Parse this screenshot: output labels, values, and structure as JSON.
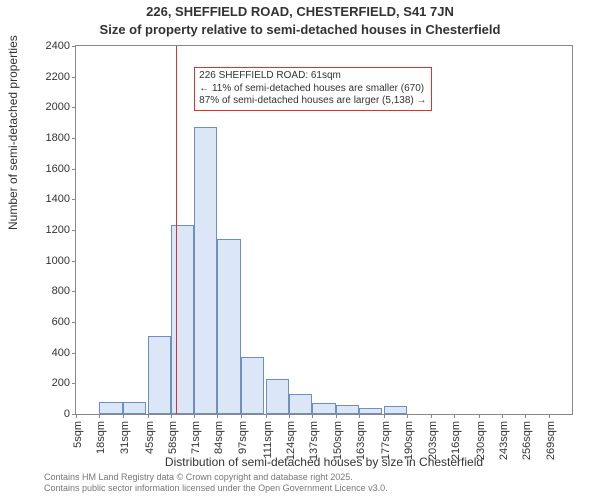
{
  "title_line1": "226, SHEFFIELD ROAD, CHESTERFIELD, S41 7JN",
  "title_line2": "Size of property relative to semi-detached houses in Chesterfield",
  "y_axis_label": "Number of semi-detached properties",
  "x_axis_label": "Distribution of semi-detached houses by size in Chesterfield",
  "footer_line1": "Contains HM Land Registry data © Crown copyright and database right 2025.",
  "footer_line2": "Contains public sector information licensed under the Open Government Licence v3.0.",
  "chart": {
    "type": "histogram",
    "background_color": "#ffffff",
    "axis_color": "#888888",
    "tick_fontsize": 11,
    "label_fontsize": 12,
    "title_fontsize": 13,
    "ylim": [
      0,
      2400
    ],
    "ytick_step": 200,
    "yticks": [
      0,
      200,
      400,
      600,
      800,
      1000,
      1200,
      1400,
      1600,
      1800,
      2000,
      2200,
      2400
    ],
    "bin_width_sqm": 13,
    "bar_fill": "#dbe7f6",
    "bar_stroke": "#6d8fc3",
    "bar_stroke_width": 1,
    "bins": [
      {
        "start": 5,
        "label": "5sqm",
        "count": 0
      },
      {
        "start": 18,
        "label": "18sqm",
        "count": 80
      },
      {
        "start": 31,
        "label": "31sqm",
        "count": 80
      },
      {
        "start": 45,
        "label": "45sqm",
        "count": 510
      },
      {
        "start": 58,
        "label": "58sqm",
        "count": 1230
      },
      {
        "start": 71,
        "label": "71sqm",
        "count": 1870
      },
      {
        "start": 84,
        "label": "84sqm",
        "count": 1140
      },
      {
        "start": 97,
        "label": "97sqm",
        "count": 370
      },
      {
        "start": 111,
        "label": "111sqm",
        "count": 230
      },
      {
        "start": 124,
        "label": "124sqm",
        "count": 130
      },
      {
        "start": 137,
        "label": "137sqm",
        "count": 70
      },
      {
        "start": 150,
        "label": "150sqm",
        "count": 60
      },
      {
        "start": 163,
        "label": "163sqm",
        "count": 40
      },
      {
        "start": 177,
        "label": "177sqm",
        "count": 50
      },
      {
        "start": 190,
        "label": "190sqm",
        "count": 0
      },
      {
        "start": 203,
        "label": "203sqm",
        "count": 0
      },
      {
        "start": 216,
        "label": "216sqm",
        "count": 0
      },
      {
        "start": 230,
        "label": "230sqm",
        "count": 0
      },
      {
        "start": 243,
        "label": "243sqm",
        "count": 0
      },
      {
        "start": 256,
        "label": "256sqm",
        "count": 0
      },
      {
        "start": 269,
        "label": "269sqm",
        "count": 0
      }
    ],
    "x_domain_sqm": [
      5,
      282
    ],
    "reference_line": {
      "value_sqm": 61,
      "color": "#e03030",
      "width": 1
    },
    "annotation": {
      "border_color": "#e03030",
      "bg_color": "#ffffff",
      "fontsize": 10,
      "line1": "226 SHEFFIELD ROAD: 61sqm",
      "line2": "← 11% of semi-detached houses are smaller (670)",
      "line3": "87% of semi-detached houses are larger (5,138) →",
      "pos_sqm": 71,
      "pos_y_value": 2260
    }
  }
}
